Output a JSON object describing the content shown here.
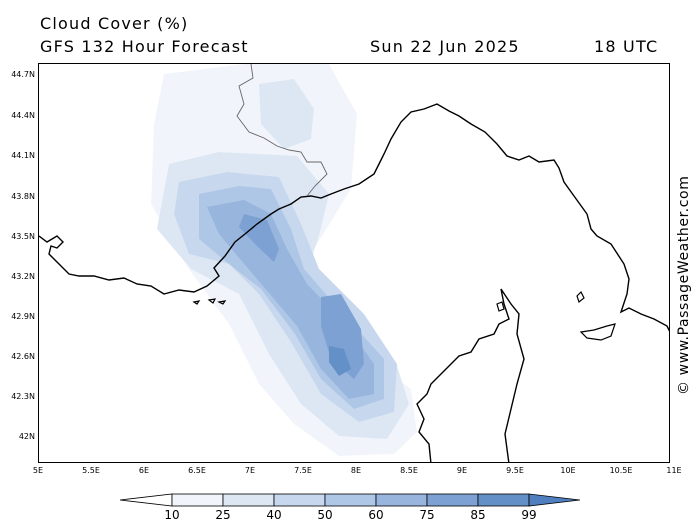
{
  "header": {
    "title": "Cloud Cover (%)",
    "model": "GFS 132 Hour Forecast",
    "date": "Sun 22 Jun 2025",
    "time": "18 UTC"
  },
  "axes": {
    "lat_labels": [
      "44.7N",
      "44.4N",
      "44.1N",
      "43.8N",
      "43.5N",
      "43.2N",
      "42.9N",
      "42.6N",
      "42.3N",
      "42N"
    ],
    "lon_labels": [
      "5E",
      "5.5E",
      "6E",
      "6.5E",
      "7E",
      "7.5E",
      "8E",
      "8.5E",
      "9E",
      "9.5E",
      "10E",
      "10.5E",
      "11E"
    ]
  },
  "legend": {
    "labels": [
      "10",
      "25",
      "40",
      "50",
      "60",
      "75",
      "85",
      "99"
    ],
    "colors": [
      "#ffffff",
      "#f1f5fb",
      "#dde7f4",
      "#c7d8ee",
      "#afc7e6",
      "#97b5dd",
      "#7da1d3",
      "#6490c8",
      "#4f7fbe"
    ]
  },
  "credit": "© www.PassageWeather.com",
  "map": {
    "region": "Ligurian Sea / Gulf of Genoa, Corsica",
    "lon_range": [
      5,
      11
    ],
    "lat_range": [
      41.8,
      44.8
    ],
    "field": "cloud cover percentage"
  }
}
